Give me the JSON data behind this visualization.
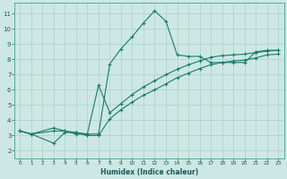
{
  "xlabel": "Humidex (Indice chaleur)",
  "xlim": [
    -0.5,
    23.5
  ],
  "ylim": [
    1.5,
    11.7
  ],
  "xticks": [
    0,
    1,
    2,
    3,
    4,
    5,
    6,
    7,
    8,
    9,
    10,
    11,
    12,
    13,
    14,
    15,
    16,
    17,
    18,
    19,
    20,
    21,
    22,
    23
  ],
  "yticks": [
    2,
    3,
    4,
    5,
    6,
    7,
    8,
    9,
    10,
    11
  ],
  "bg_color": "#cde8e4",
  "grid_color": "#b0d4ce",
  "line_color": "#1a7a6e",
  "lines": [
    {
      "x": [
        0,
        1,
        3,
        4,
        5,
        6,
        7,
        8,
        9,
        10,
        11,
        12,
        13,
        14,
        15,
        16,
        17,
        18,
        19,
        20,
        21,
        22,
        23
      ],
      "y": [
        3.3,
        3.1,
        3.3,
        3.3,
        3.1,
        3.1,
        3.1,
        7.7,
        8.7,
        9.5,
        10.4,
        11.2,
        10.5,
        8.3,
        8.2,
        8.2,
        7.8,
        7.8,
        7.8,
        7.8,
        8.5,
        8.6,
        8.6
      ]
    },
    {
      "x": [
        0,
        1,
        3,
        4,
        5,
        6,
        7,
        8,
        9,
        10,
        11,
        12,
        13,
        14,
        15,
        16,
        17,
        18,
        19,
        20,
        21,
        22,
        23
      ],
      "y": [
        3.3,
        3.1,
        3.5,
        3.3,
        3.2,
        3.1,
        6.3,
        4.5,
        5.1,
        5.7,
        6.2,
        6.6,
        7.0,
        7.35,
        7.65,
        7.9,
        8.15,
        8.25,
        8.3,
        8.35,
        8.45,
        8.55,
        8.6
      ]
    },
    {
      "x": [
        0,
        1,
        3,
        4,
        5,
        6,
        7,
        8,
        9,
        10,
        11,
        12,
        13,
        14,
        15,
        16,
        17,
        18,
        19,
        20,
        21,
        22,
        23
      ],
      "y": [
        3.3,
        3.1,
        2.5,
        3.2,
        3.2,
        3.0,
        3.0,
        4.1,
        4.7,
        5.2,
        5.65,
        6.0,
        6.4,
        6.8,
        7.1,
        7.4,
        7.65,
        7.8,
        7.9,
        7.95,
        8.1,
        8.3,
        8.35
      ]
    }
  ]
}
